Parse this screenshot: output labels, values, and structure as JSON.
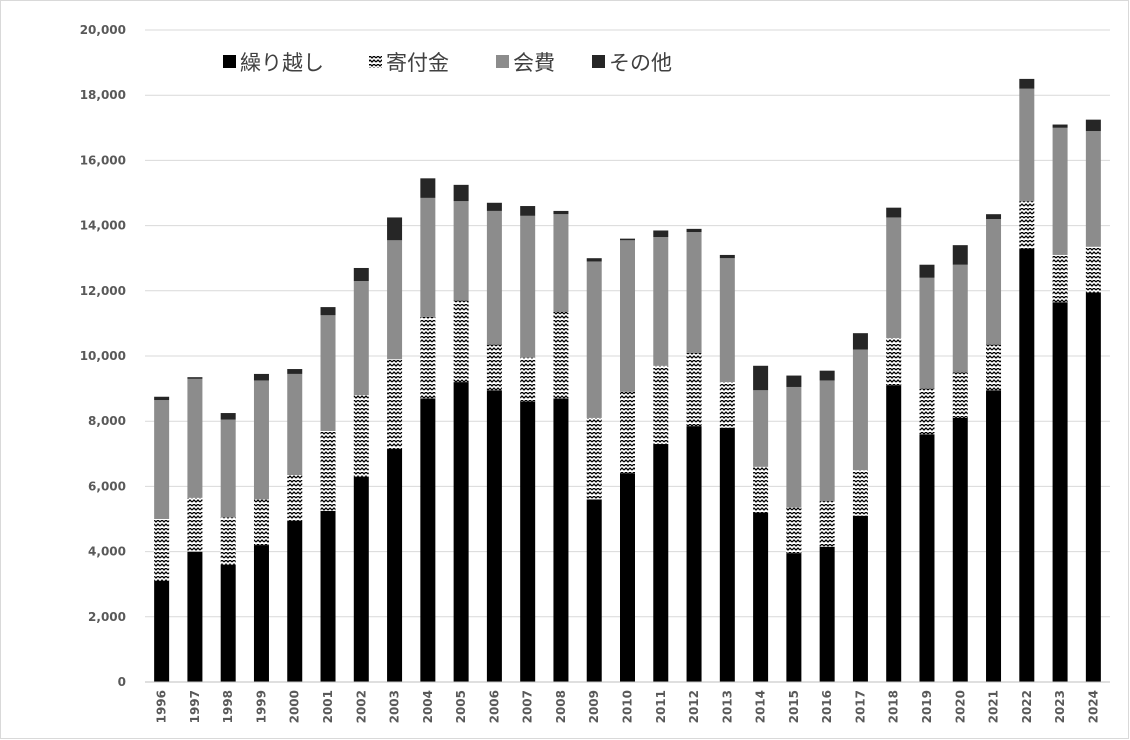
{
  "chart_data": {
    "type": "bar",
    "stacked": true,
    "categories": [
      "1996",
      "1997",
      "1998",
      "1999",
      "2000",
      "2001",
      "2002",
      "2003",
      "2004",
      "2005",
      "2006",
      "2007",
      "2008",
      "2009",
      "2010",
      "2011",
      "2012",
      "2013",
      "2014",
      "2015",
      "2016",
      "2017",
      "2018",
      "2019",
      "2020",
      "2021",
      "2022",
      "2023",
      "2024"
    ],
    "series": [
      {
        "name": "繰り越し",
        "color": "#000000",
        "pattern": "solid",
        "values": [
          3100,
          4000,
          3600,
          4200,
          4950,
          5250,
          6300,
          7150,
          8700,
          9200,
          8950,
          8600,
          8700,
          5600,
          6400,
          7300,
          7850,
          7800,
          5200,
          3950,
          4150,
          5100,
          9100,
          7600,
          8100,
          8950,
          13300,
          11650,
          11950
        ]
      },
      {
        "name": "寄付金",
        "color": "#000000",
        "pattern": "zigzag",
        "values": [
          1900,
          1650,
          1450,
          1400,
          1400,
          2450,
          2500,
          2750,
          2500,
          2500,
          1400,
          1350,
          2650,
          2500,
          2500,
          2400,
          2250,
          1400,
          1400,
          1400,
          1400,
          1400,
          1450,
          1400,
          1400,
          1400,
          1450,
          1450,
          1400
        ]
      },
      {
        "name": "会費",
        "color": "#8c8c8c",
        "pattern": "solid",
        "values": [
          3650,
          3650,
          3000,
          3650,
          3100,
          3550,
          3500,
          3650,
          3650,
          3050,
          4100,
          4350,
          3000,
          4800,
          4650,
          3950,
          3700,
          3800,
          2350,
          3700,
          3700,
          3700,
          3700,
          3400,
          3300,
          3850,
          3450,
          3900,
          3550
        ]
      },
      {
        "name": "その他",
        "color": "#262626",
        "pattern": "solid",
        "values": [
          100,
          50,
          200,
          200,
          150,
          250,
          400,
          700,
          600,
          500,
          250,
          300,
          100,
          100,
          50,
          200,
          100,
          100,
          750,
          350,
          300,
          500,
          300,
          400,
          600,
          150,
          300,
          100,
          350
        ]
      }
    ],
    "ylim": [
      0,
      20000
    ],
    "yticks": [
      "0",
      "2,000",
      "4,000",
      "6,000",
      "8,000",
      "10,000",
      "12,000",
      "14,000",
      "16,000",
      "18,000",
      "20,000"
    ],
    "ytick_values": [
      0,
      2000,
      4000,
      6000,
      8000,
      10000,
      12000,
      14000,
      16000,
      18000,
      20000
    ],
    "grid": true,
    "legend_position": "top-left",
    "legend_markers": [
      "■",
      "⩰",
      "■",
      "■"
    ],
    "title": "",
    "xlabel": "",
    "ylabel": ""
  }
}
